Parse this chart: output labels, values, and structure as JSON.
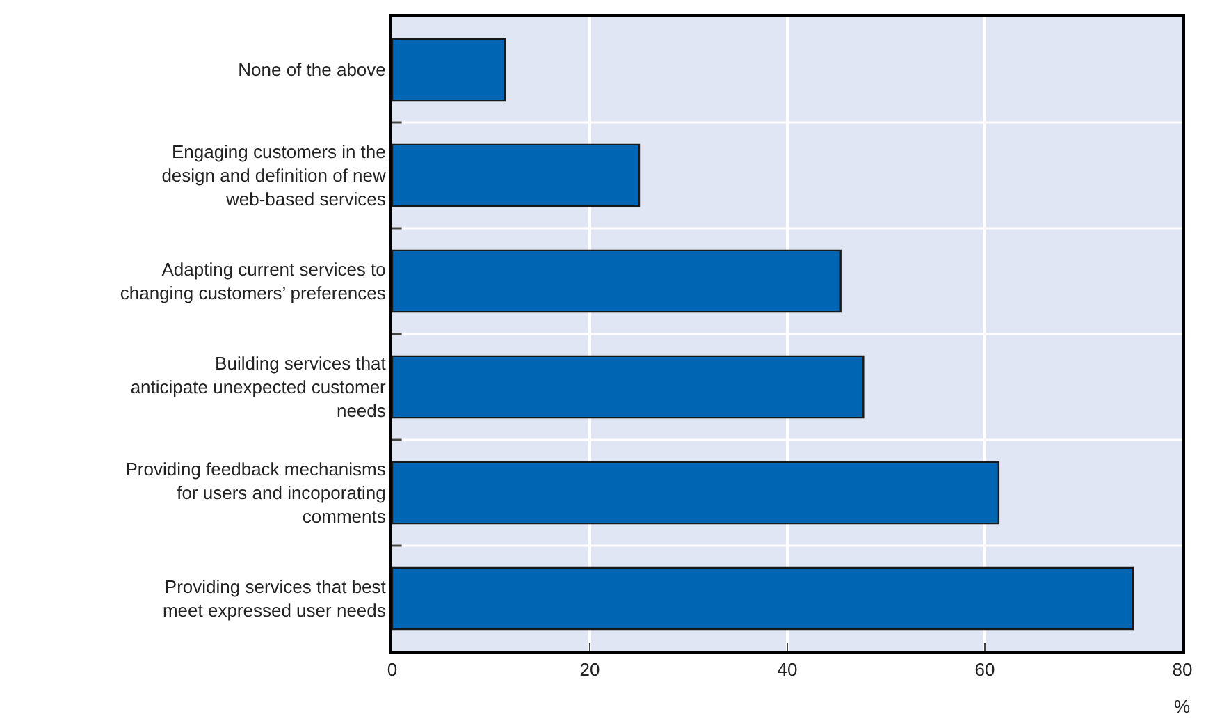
{
  "chart_data": {
    "type": "bar",
    "orientation": "horizontal",
    "xlabel": "%",
    "categories": [
      "None of the above",
      "Engaging customers in the design and definition of new web-based services",
      "Adapting current services to changing customers’ preferences",
      "Building services that anticipate unexpected customer needs",
      "Providing feedback mechanisms for users and incoporating comments",
      "Providing services that best meet expressed user needs"
    ],
    "values": [
      11.4,
      25.0,
      45.4,
      47.7,
      61.4,
      75.0
    ],
    "color": "#0066b3",
    "xlim": [
      0,
      80
    ],
    "xticks": [
      0,
      20,
      40,
      60,
      80
    ],
    "grid": true,
    "legend": false
  }
}
